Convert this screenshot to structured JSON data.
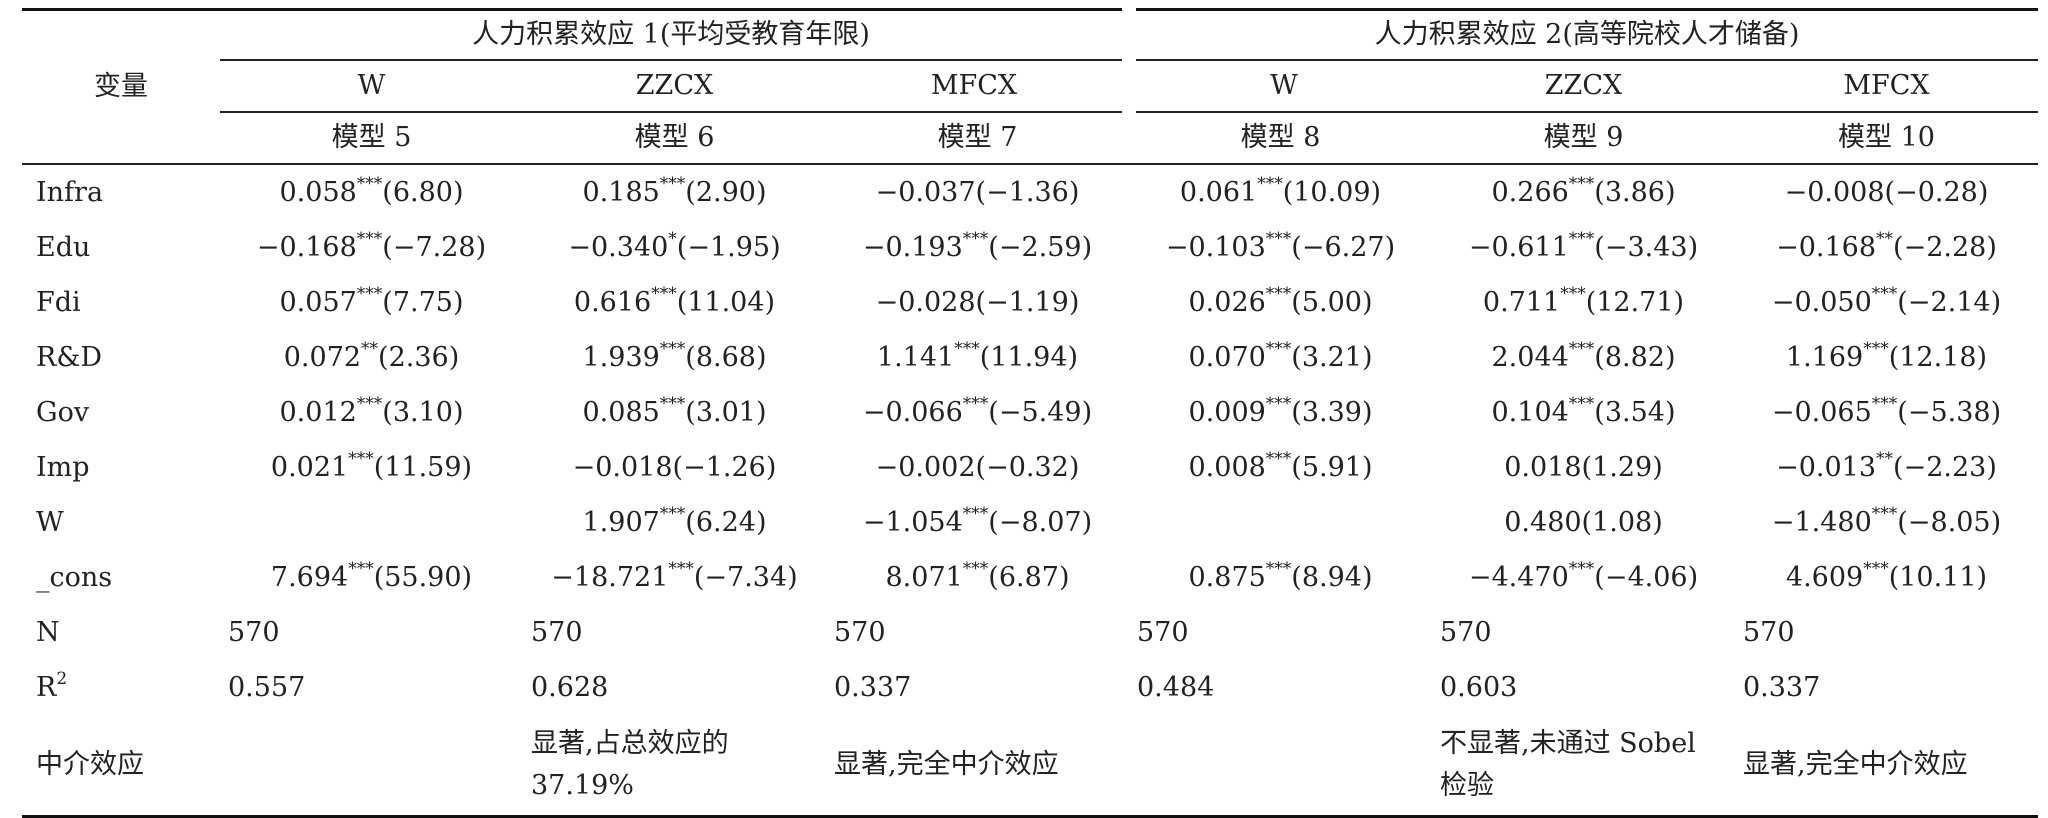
{
  "header": {
    "var_label": "变量",
    "group1": "人力积累效应 1(平均受教育年限)",
    "group2": "人力积累效应 2(高等院校人才储备)",
    "dep_vars": [
      "W",
      "ZZCX",
      "MFCX",
      "W",
      "ZZCX",
      "MFCX"
    ],
    "models": [
      "模型 5",
      "模型 6",
      "模型 7",
      "模型 8",
      "模型 9",
      "模型 10"
    ]
  },
  "rows": [
    {
      "label": "Infra",
      "cells": [
        {
          "coef": "0.058",
          "stars": "***",
          "t": "(6.80)"
        },
        {
          "coef": "0.185",
          "stars": "***",
          "t": "(2.90)"
        },
        {
          "coef": "−0.037",
          "stars": "",
          "t": "(−1.36)"
        },
        {
          "coef": "0.061",
          "stars": "***",
          "t": "(10.09)"
        },
        {
          "coef": "0.266",
          "stars": "***",
          "t": "(3.86)"
        },
        {
          "coef": "−0.008",
          "stars": "",
          "t": "(−0.28)"
        }
      ]
    },
    {
      "label": "Edu",
      "cells": [
        {
          "coef": "−0.168",
          "stars": "***",
          "t": "(−7.28)"
        },
        {
          "coef": "−0.340",
          "stars": "*",
          "t": "(−1.95)"
        },
        {
          "coef": "−0.193",
          "stars": "***",
          "t": "(−2.59)"
        },
        {
          "coef": "−0.103",
          "stars": "***",
          "t": "(−6.27)"
        },
        {
          "coef": "−0.611",
          "stars": "***",
          "t": "(−3.43)"
        },
        {
          "coef": "−0.168",
          "stars": "**",
          "t": "(−2.28)"
        }
      ]
    },
    {
      "label": "Fdi",
      "cells": [
        {
          "coef": "0.057",
          "stars": "***",
          "t": "(7.75)"
        },
        {
          "coef": "0.616",
          "stars": "***",
          "t": "(11.04)"
        },
        {
          "coef": "−0.028",
          "stars": "",
          "t": "(−1.19)"
        },
        {
          "coef": "0.026",
          "stars": "***",
          "t": "(5.00)"
        },
        {
          "coef": "0.711",
          "stars": "***",
          "t": "(12.71)"
        },
        {
          "coef": "−0.050",
          "stars": "***",
          "t": "(−2.14)"
        }
      ]
    },
    {
      "label": "R&D",
      "cells": [
        {
          "coef": "0.072",
          "stars": "**",
          "t": "(2.36)"
        },
        {
          "coef": "1.939",
          "stars": "***",
          "t": "(8.68)"
        },
        {
          "coef": "1.141",
          "stars": "***",
          "t": "(11.94)"
        },
        {
          "coef": "0.070",
          "stars": "***",
          "t": "(3.21)"
        },
        {
          "coef": "2.044",
          "stars": "***",
          "t": "(8.82)"
        },
        {
          "coef": "1.169",
          "stars": "***",
          "t": "(12.18)"
        }
      ]
    },
    {
      "label": "Gov",
      "cells": [
        {
          "coef": "0.012",
          "stars": "***",
          "t": "(3.10)"
        },
        {
          "coef": "0.085",
          "stars": "***",
          "t": "(3.01)"
        },
        {
          "coef": "−0.066",
          "stars": "***",
          "t": "(−5.49)"
        },
        {
          "coef": "0.009",
          "stars": "***",
          "t": "(3.39)"
        },
        {
          "coef": "0.104",
          "stars": "***",
          "t": "(3.54)"
        },
        {
          "coef": "−0.065",
          "stars": "***",
          "t": "(−5.38)"
        }
      ]
    },
    {
      "label": "Imp",
      "cells": [
        {
          "coef": "0.021",
          "stars": "***",
          "t": "(11.59)"
        },
        {
          "coef": "−0.018",
          "stars": "",
          "t": "(−1.26)"
        },
        {
          "coef": "−0.002",
          "stars": "",
          "t": "(−0.32)"
        },
        {
          "coef": "0.008",
          "stars": "***",
          "t": "(5.91)"
        },
        {
          "coef": "0.018",
          "stars": "",
          "t": "(1.29)"
        },
        {
          "coef": "−0.013",
          "stars": "**",
          "t": "(−2.23)"
        }
      ]
    },
    {
      "label": "W",
      "cells": [
        {
          "coef": "",
          "stars": "",
          "t": ""
        },
        {
          "coef": "1.907",
          "stars": "***",
          "t": "(6.24)"
        },
        {
          "coef": "−1.054",
          "stars": "***",
          "t": "(−8.07)"
        },
        {
          "coef": "",
          "stars": "",
          "t": ""
        },
        {
          "coef": "0.480",
          "stars": "",
          "t": "(1.08)"
        },
        {
          "coef": "−1.480",
          "stars": "***",
          "t": "(−8.05)"
        }
      ]
    },
    {
      "label": "_cons",
      "cells": [
        {
          "coef": "7.694",
          "stars": "***",
          "t": "(55.90)"
        },
        {
          "coef": "−18.721",
          "stars": "***",
          "t": "(−7.34)"
        },
        {
          "coef": "8.071",
          "stars": "***",
          "t": "(6.87)"
        },
        {
          "coef": "0.875",
          "stars": "***",
          "t": "(8.94)"
        },
        {
          "coef": "−4.470",
          "stars": "***",
          "t": "(−4.06)"
        },
        {
          "coef": "4.609",
          "stars": "***",
          "t": "(10.11)"
        }
      ]
    }
  ],
  "n_row": {
    "label": "N",
    "values": [
      "570",
      "570",
      "570",
      "570",
      "570",
      "570"
    ]
  },
  "r2_row": {
    "label": "R",
    "label_sup": "2",
    "values": [
      "0.557",
      "0.628",
      "0.337",
      "0.484",
      "0.603",
      "0.337"
    ]
  },
  "mediation_row": {
    "label": "中介效应",
    "values": [
      "",
      "显著,占总效应的 37.19%",
      "显著,完全中介效应",
      "",
      "不显著,未通过 Sobel 检验",
      "显著,完全中介效应"
    ]
  }
}
